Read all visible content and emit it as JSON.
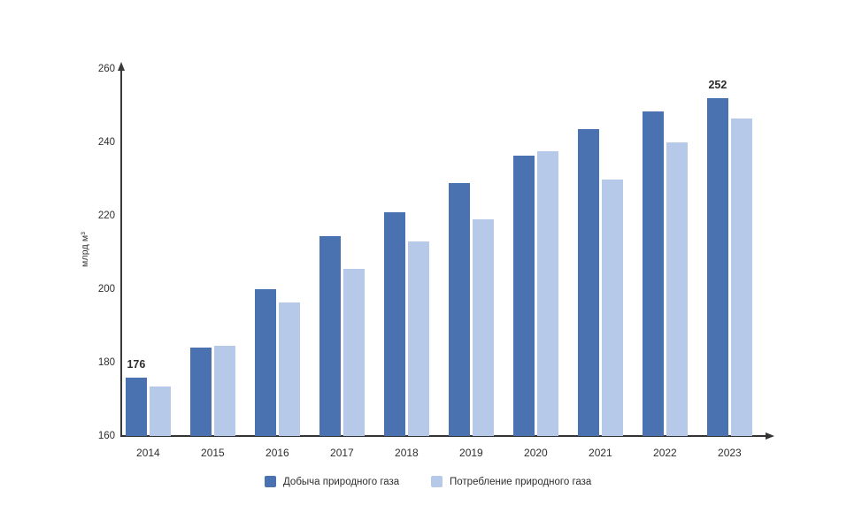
{
  "chart_data": {
    "type": "bar",
    "title": "",
    "xlabel": "",
    "ylabel": "млрд м³",
    "categories": [
      "2014",
      "2015",
      "2016",
      "2017",
      "2018",
      "2019",
      "2020",
      "2021",
      "2022",
      "2023"
    ],
    "series": [
      {
        "name": "Добыча природного газа",
        "color": "#4A72B0",
        "values": [
          176,
          184,
          200,
          214.5,
          221,
          229,
          236.5,
          243.5,
          248.5,
          252
        ]
      },
      {
        "name": "Потребление природного газа",
        "color": "#B7C9E8",
        "values": [
          173.5,
          184.5,
          196.5,
          205.5,
          213,
          219,
          237.5,
          230,
          240,
          246.5
        ]
      }
    ],
    "ylim": [
      160,
      260
    ],
    "yticks": [
      160,
      180,
      200,
      220,
      240,
      260
    ],
    "grid": false,
    "legend_position": "bottom",
    "annotations": [
      {
        "series_index": 0,
        "category_index": 0,
        "text": "176"
      },
      {
        "series_index": 0,
        "category_index": 9,
        "text": "252"
      }
    ]
  },
  "colors": {
    "background": "#ffffff",
    "axis": "#3a3a3a",
    "text": "#2e2e2e"
  }
}
